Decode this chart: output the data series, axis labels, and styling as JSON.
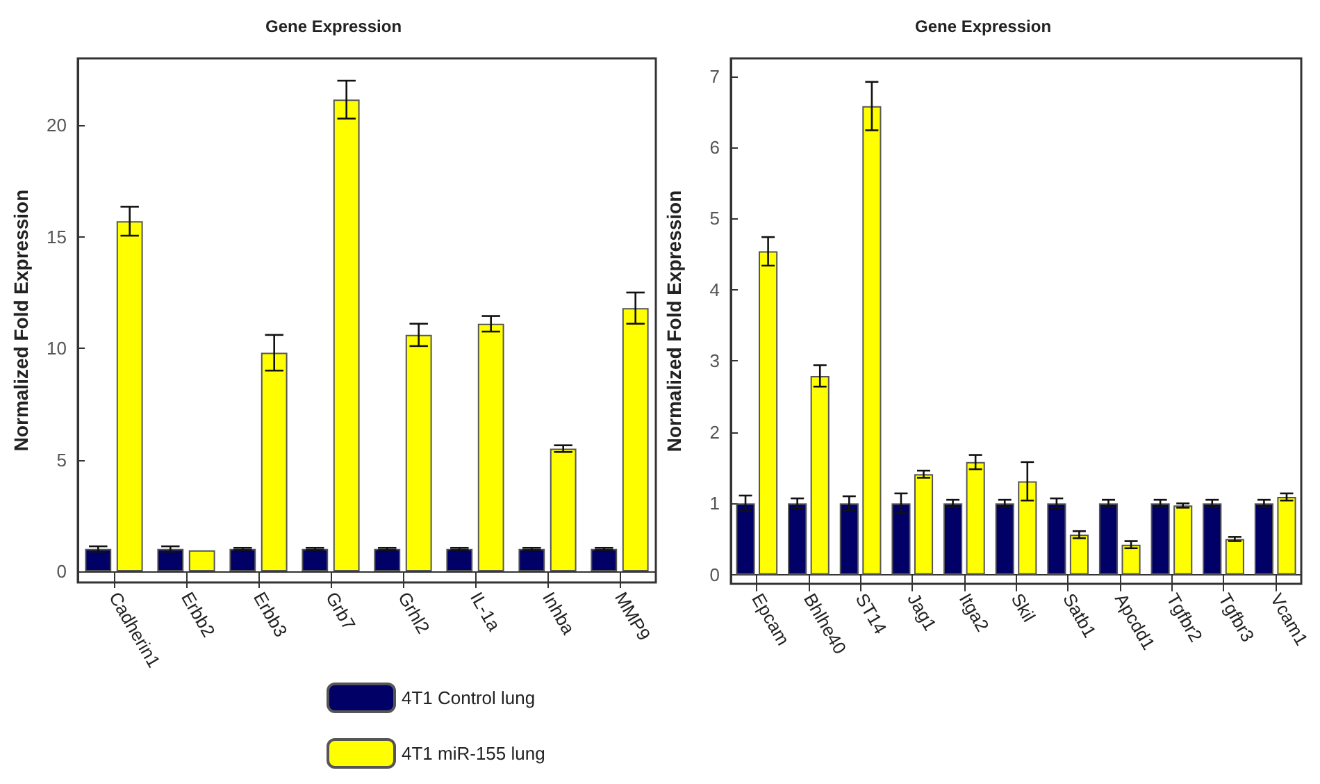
{
  "chart_data": [
    {
      "type": "bar",
      "title": "Gene Expression",
      "ylabel": "Normalized Fold Expression",
      "categories": [
        "Cadherin1",
        "Erbb2",
        "Erbb3",
        "Grb7",
        "Grhl2",
        "IL-1a",
        "Inhba",
        "MMP9"
      ],
      "ylim": [
        -0.5,
        23
      ],
      "yticks": [
        0,
        5,
        10,
        15,
        20
      ],
      "legend": "bottom",
      "series": [
        {
          "name": "4T1 Control lung",
          "color": "#000066",
          "values": [
            1,
            1,
            1,
            1,
            1,
            1,
            1,
            1
          ],
          "errors": [
            0.12,
            0.12,
            0.05,
            0.05,
            0.05,
            0.05,
            0.05,
            0.05
          ]
        },
        {
          "name": "4T1 miR-155 lung",
          "color": "#ffff00",
          "values": [
            15.7,
            0.94,
            9.8,
            21.15,
            10.6,
            11.1,
            5.5,
            11.8
          ],
          "errors": [
            0.65,
            null,
            0.8,
            0.85,
            0.5,
            0.35,
            0.15,
            0.7
          ]
        }
      ]
    },
    {
      "type": "bar",
      "title": "Gene Expression",
      "ylabel": "Normalized Fold Expression",
      "categories": [
        "Epcam",
        "Bhlhe40",
        "ST14",
        "Jag1",
        "Itga2",
        "Skil",
        "Satb1",
        "Apcdd1",
        "Tgfbr2",
        "Tgfbr3",
        "Vcam1"
      ],
      "ylim": [
        -0.13,
        7.25
      ],
      "yticks": [
        0,
        1,
        2,
        3,
        4,
        5,
        6,
        7
      ],
      "series": [
        {
          "color": "#000066",
          "values": [
            1,
            1,
            1,
            1,
            1,
            1,
            1,
            1,
            1,
            1,
            1
          ],
          "errors": [
            0.11,
            0.07,
            0.1,
            0.14,
            0.05,
            0.05,
            0.07,
            0.05,
            0.05,
            0.05,
            0.05
          ]
        },
        {
          "color": "#ffff00",
          "values": [
            4.54,
            2.79,
            6.58,
            1.41,
            1.58,
            1.31,
            0.56,
            0.42,
            0.97,
            0.5,
            1.09
          ],
          "errors": [
            0.2,
            0.15,
            0.34,
            0.05,
            0.1,
            0.27,
            0.05,
            0.05,
            0.03,
            0.03,
            0.05
          ]
        }
      ]
    }
  ]
}
